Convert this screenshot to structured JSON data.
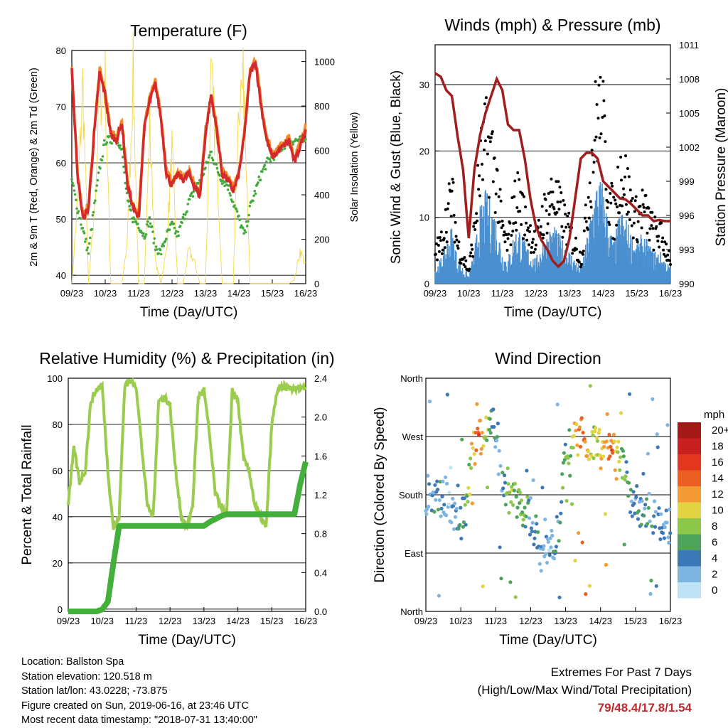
{
  "panels": {
    "temperature": {
      "title": "Temperature (F)",
      "ylabel_left": "2m & 9m T (Red, Orange) & 2m Td (Green)",
      "ylabel_right": "Solar Insolation (Yellow)",
      "xlabel": "Time (Day/UTC)"
    },
    "winds": {
      "title": "Winds (mph) & Pressure (mb)",
      "ylabel_left": "Sonic Wind & Gust (Blue, Black)",
      "ylabel_right": "Station Pressure (Maroon)",
      "xlabel": "Time (Day/UTC)"
    },
    "humidity": {
      "title": "Relative Humidity (%) & Precipitation (in)",
      "ylabel_left": "Percent & Total Rainfall",
      "xlabel": "Time (Day/UTC)"
    },
    "direction": {
      "title": "Wind Direction",
      "ylabel_left": "Direction (Colored By Speed)",
      "xlabel": "Time (Day/UTC)",
      "colorbar_title": "mph",
      "colorbar_labels": [
        "20+",
        "18",
        "16",
        "14",
        "12",
        "10",
        "8",
        "6",
        "4",
        "2",
        "0"
      ]
    }
  },
  "info": {
    "location": "Location: Ballston Spa",
    "elevation": "Station elevation: 120.518 m",
    "latlon": "Station lat/lon: 43.0228; -73.875",
    "created": "Figure created on Sun, 2019-06-16, at 23:46 UTC",
    "recent": "Most recent data timestamp: \"2018-07-31 13:40:00\""
  },
  "extremes": {
    "line1": "Extremes For Past 7 Days",
    "line2": "(High/Low/Max Wind/Total Precipitation)",
    "values": "79/48.4/17.8/1.54"
  },
  "colors": {
    "temp2m": "#d42a2a",
    "temp9m": "#f08a2a",
    "dewpoint": "#44aa3c",
    "solar": "#f5d84a",
    "gust": "#000000",
    "wind": "#4a90d0",
    "pressure": "#a01e1e",
    "rh": "#9ccc4e",
    "precip": "#44b03c",
    "extremes": "#c0282b"
  },
  "chart_data": [
    {
      "type": "line",
      "title": "Temperature (F)",
      "xlabel": "Time (Day/UTC)",
      "ylabel": "2m & 9m T (Red, Orange) & 2m Td (Green)",
      "ylabel_right": "Solar Insolation (Yellow)",
      "x_ticks": [
        "09/23",
        "10/23",
        "11/23",
        "12/23",
        "13/23",
        "14/23",
        "15/23",
        "16/23"
      ],
      "ylim": [
        38.5,
        80
      ],
      "yticks": [
        40,
        50,
        60,
        70,
        80
      ],
      "ylim_right": [
        0,
        1050
      ],
      "yticks_right": [
        0,
        200,
        400,
        600,
        800,
        1000
      ],
      "grid_y": true,
      "x_hours": [
        0,
        4,
        8,
        12,
        16,
        20,
        24,
        28,
        32,
        36,
        40,
        44,
        48,
        52,
        56,
        60,
        64,
        68,
        72,
        76,
        80,
        84,
        88,
        92,
        96,
        100,
        104,
        108,
        112,
        116,
        120,
        124,
        128,
        132,
        136,
        140,
        144,
        148,
        152,
        156,
        160,
        164,
        168
      ],
      "series": [
        {
          "name": "2m T",
          "values": [
            77,
            58,
            50,
            52,
            65,
            76,
            72,
            65,
            64,
            67,
            56,
            52,
            50,
            66,
            71,
            74,
            68,
            58,
            56,
            58,
            57,
            58,
            56,
            54,
            65,
            72,
            66,
            58,
            57,
            55,
            58,
            65,
            76,
            78,
            70,
            64,
            61,
            62,
            63,
            64,
            60,
            63,
            66
          ]
        },
        {
          "name": "2m Td",
          "values": [
            57,
            52,
            48,
            44,
            52,
            59,
            64,
            64,
            65,
            62,
            53,
            50,
            49,
            47,
            50,
            45,
            44,
            47,
            49,
            47,
            50,
            53,
            55,
            57,
            59,
            62,
            59,
            57,
            56,
            53,
            50,
            47,
            52,
            55,
            58,
            60,
            61,
            62,
            63,
            64,
            64,
            64,
            64
          ]
        },
        {
          "name": "Solar",
          "values": [
            0,
            350,
            900,
            0,
            300,
            850,
            900,
            0,
            0,
            0,
            200,
            950,
            0,
            0,
            700,
            100,
            0,
            150,
            600,
            0,
            0,
            150,
            100,
            0,
            0,
            900,
            600,
            0,
            0,
            0,
            850,
            900,
            0,
            0,
            0,
            0,
            0,
            0,
            0,
            0,
            20,
            150,
            80
          ]
        }
      ]
    },
    {
      "type": "scatter",
      "title": "Winds (mph) & Pressure (mb)",
      "xlabel": "Time (Day/UTC)",
      "ylabel": "Sonic Wind & Gust (Blue, Black)",
      "ylabel_right": "Station Pressure (Maroon)",
      "x_ticks": [
        "09/23",
        "10/23",
        "11/23",
        "12/23",
        "13/23",
        "14/23",
        "15/23",
        "16/23"
      ],
      "ylim": [
        0,
        36
      ],
      "yticks": [
        0,
        10,
        20,
        30
      ],
      "ylim_right": [
        990,
        1011
      ],
      "yticks_right": [
        990,
        993,
        996,
        999,
        1002,
        1005,
        1008,
        1011
      ],
      "grid_y": true,
      "x_hours": [
        0,
        4,
        8,
        12,
        16,
        20,
        24,
        28,
        32,
        36,
        40,
        44,
        48,
        52,
        56,
        60,
        64,
        68,
        72,
        76,
        80,
        84,
        88,
        92,
        96,
        100,
        104,
        108,
        112,
        116,
        120,
        124,
        128,
        132,
        136,
        140,
        144,
        148,
        152,
        156,
        160,
        164,
        168
      ],
      "series": [
        {
          "name": "Gust",
          "values": [
            5,
            6,
            10,
            14,
            6,
            4,
            2,
            8,
            18,
            22,
            21,
            16,
            8,
            6,
            12,
            14,
            10,
            8,
            6,
            10,
            12,
            14,
            12,
            10,
            8,
            6,
            4,
            10,
            20,
            27,
            24,
            14,
            10,
            18,
            16,
            12,
            10,
            12,
            10,
            8,
            8,
            6,
            4
          ]
        },
        {
          "name": "Wind",
          "values": [
            2,
            3,
            5,
            7,
            3,
            2,
            1,
            4,
            9,
            11,
            10,
            8,
            4,
            3,
            6,
            7,
            5,
            4,
            3,
            5,
            6,
            7,
            6,
            5,
            4,
            3,
            2,
            5,
            10,
            13,
            12,
            7,
            5,
            9,
            8,
            6,
            5,
            6,
            5,
            4,
            4,
            3,
            2
          ]
        },
        {
          "name": "Pressure",
          "values": [
            1008.5,
            1008.2,
            1007,
            1006.5,
            1003,
            1000,
            994,
            1000,
            1003,
            1005,
            1006.5,
            1008,
            1007,
            1004,
            1003.5,
            1003.5,
            1001,
            997.5,
            995,
            993.8,
            993,
            992,
            991.5,
            992,
            994,
            997.5,
            1001,
            1001.5,
            1001.5,
            1001,
            999,
            998.5,
            998,
            997.5,
            997.4,
            997,
            996.5,
            996,
            996,
            995.5,
            995.6,
            995.5,
            995.5
          ]
        }
      ]
    },
    {
      "type": "line",
      "title": "Relative Humidity (%) & Precipitation (in)",
      "xlabel": "Time (Day/UTC)",
      "ylabel": "Percent & Total Rainfall",
      "x_ticks": [
        "09/23",
        "10/23",
        "11/23",
        "12/23",
        "13/23",
        "14/23",
        "15/23",
        "16/23"
      ],
      "ylim": [
        -1,
        100
      ],
      "yticks": [
        0,
        20,
        40,
        60,
        80,
        100
      ],
      "ylim_right": [
        0,
        2.4
      ],
      "yticks_right": [
        0.0,
        0.4,
        0.8,
        1.2,
        1.6,
        2.0,
        2.4
      ],
      "grid_y": true,
      "x_hours": [
        0,
        4,
        8,
        12,
        16,
        20,
        24,
        28,
        32,
        36,
        40,
        44,
        48,
        52,
        56,
        60,
        64,
        68,
        72,
        76,
        80,
        84,
        88,
        92,
        96,
        100,
        104,
        108,
        112,
        116,
        120,
        124,
        128,
        132,
        136,
        140,
        144,
        148,
        152,
        156,
        160,
        164,
        168
      ],
      "series": [
        {
          "name": "RH",
          "values": [
            45,
            70,
            55,
            60,
            90,
            95,
            97,
            60,
            35,
            40,
            97,
            99,
            97,
            70,
            45,
            40,
            90,
            92,
            88,
            60,
            40,
            35,
            45,
            92,
            95,
            75,
            50,
            45,
            40,
            95,
            90,
            65,
            60,
            45,
            40,
            35,
            80,
            95,
            96,
            96,
            95,
            96,
            96
          ]
        },
        {
          "name": "Total Rainfall",
          "values": [
            0,
            0,
            0,
            0,
            0,
            0,
            0.02,
            0.1,
            0.5,
            0.88,
            0.88,
            0.88,
            0.88,
            0.88,
            0.88,
            0.88,
            0.88,
            0.88,
            0.88,
            0.88,
            0.88,
            0.88,
            0.88,
            0.88,
            0.88,
            0.92,
            0.95,
            0.98,
            1.0,
            1.0,
            1.0,
            1.0,
            1.0,
            1.0,
            1.0,
            1.0,
            1.0,
            1.0,
            1.0,
            1.0,
            1.0,
            1.3,
            1.54
          ]
        }
      ]
    },
    {
      "type": "scatter",
      "title": "Wind Direction",
      "xlabel": "Time (Day/UTC)",
      "ylabel": "Direction (Colored By Speed)",
      "x_ticks": [
        "09/23",
        "10/23",
        "11/23",
        "12/23",
        "13/23",
        "14/23",
        "15/23",
        "16/23"
      ],
      "y_ticks": [
        "North",
        "East",
        "South",
        "West",
        "North"
      ],
      "ylim": [
        0,
        360
      ],
      "grid_y": true,
      "color_scale": {
        "title": "mph",
        "labels": [
          "20+",
          "18",
          "16",
          "14",
          "12",
          "10",
          "8",
          "6",
          "4",
          "2",
          "0"
        ],
        "colors": [
          "#a51818",
          "#c82020",
          "#e2361e",
          "#ec5f22",
          "#f39a34",
          "#e3d444",
          "#8dc74a",
          "#4da35c",
          "#3d78b8",
          "#7fb5e2",
          "#bfe3f6"
        ]
      },
      "x_hours": [
        0,
        4,
        8,
        12,
        16,
        20,
        24,
        28,
        32,
        36,
        40,
        44,
        48,
        52,
        56,
        60,
        64,
        68,
        72,
        76,
        80,
        84,
        88,
        92,
        96,
        100,
        104,
        108,
        112,
        116,
        120,
        124,
        128,
        132,
        136,
        140,
        144,
        148,
        152,
        156,
        160,
        164,
        168
      ],
      "series": [
        {
          "name": "Direction",
          "values": [
            180,
            180,
            180,
            180,
            170,
            150,
            140,
            160,
            250,
            265,
            275,
            290,
            280,
            200,
            185,
            170,
            165,
            160,
            150,
            120,
            80,
            90,
            110,
            140,
            250,
            265,
            270,
            270,
            265,
            260,
            250,
            250,
            250,
            240,
            230,
            170,
            165,
            160,
            150,
            145,
            140,
            135,
            130
          ]
        },
        {
          "name": "Speed",
          "values": [
            2,
            3,
            4,
            3,
            2,
            3,
            4,
            6,
            12,
            14,
            10,
            6,
            4,
            3,
            8,
            8,
            7,
            6,
            4,
            4,
            3,
            2,
            4,
            5,
            6,
            8,
            12,
            14,
            10,
            8,
            10,
            12,
            14,
            10,
            6,
            4,
            3,
            4,
            4,
            3,
            3,
            3,
            2
          ]
        }
      ]
    }
  ]
}
